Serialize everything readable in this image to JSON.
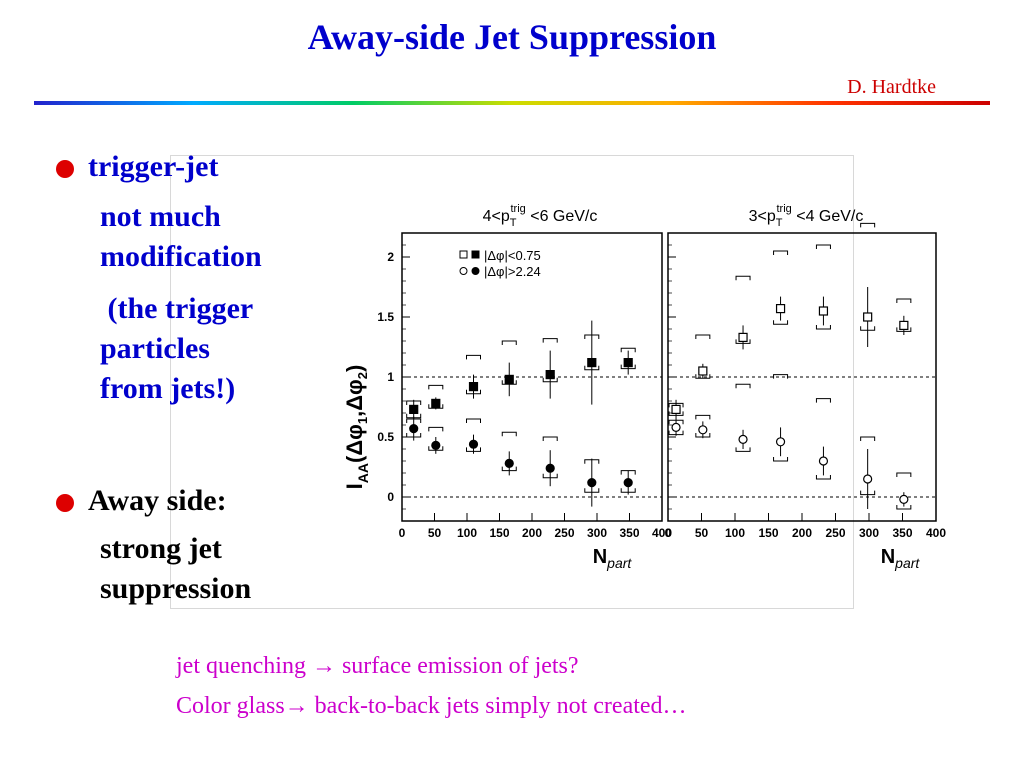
{
  "slide": {
    "title": "Away-side Jet Suppression",
    "author": "D. Hardtke",
    "bullet1": {
      "heading": "trigger-jet",
      "lines": [
        "not much",
        "modification",
        " (the trigger",
        "particles",
        "from jets!)"
      ]
    },
    "bullet2": {
      "heading": "Away side:",
      "lines": [
        "strong jet",
        "suppression"
      ]
    },
    "footer": [
      "jet quenching → surface emission of jets?",
      "Color glass→ back-to-back jets simply not created…"
    ]
  },
  "chart_data": {
    "type": "scatter",
    "ylabel": "I_AA(Δφ1,Δφ2)",
    "xlabel": "N_part",
    "ylim": [
      -0.2,
      2.2
    ],
    "xlim": [
      0,
      400
    ],
    "yticks": [
      "0",
      "0.5",
      "1",
      "1.5",
      "2"
    ],
    "xticks": [
      "0",
      "50",
      "100",
      "150",
      "200",
      "250",
      "300",
      "350",
      "400"
    ],
    "legend_position": "top-left",
    "legend": [
      "|Δφ|<0.75",
      "|Δφ|>2.24"
    ],
    "panels": [
      {
        "title": "4<p_T^trig <6 GeV/c",
        "title_main": "4<p",
        "title_sub": "T",
        "title_sup": "trig",
        "title_rest": " <6 GeV/c",
        "series": [
          {
            "name": "|Δφ|<0.75",
            "marker": "filled-square",
            "x": [
              18,
              52,
              110,
              165,
              228,
              292,
              348
            ],
            "y": [
              0.73,
              0.78,
              0.92,
              0.98,
              1.02,
              1.12,
              1.12
            ],
            "err": [
              0.08,
              0.05,
              0.1,
              0.14,
              0.2,
              0.35,
              0.1
            ],
            "sys_low": [
              0.66,
              0.74,
              0.86,
              0.94,
              0.96,
              1.06,
              1.07
            ],
            "sys_high": [
              0.8,
              0.93,
              1.18,
              1.3,
              1.32,
              1.35,
              1.24
            ]
          },
          {
            "name": "|Δφ|>2.24",
            "marker": "filled-circle",
            "x": [
              18,
              52,
              110,
              165,
              228,
              292,
              348
            ],
            "y": [
              0.57,
              0.43,
              0.44,
              0.28,
              0.24,
              0.12,
              0.12
            ],
            "err": [
              0.1,
              0.07,
              0.08,
              0.1,
              0.15,
              0.2,
              0.1
            ],
            "sys_low": [
              0.5,
              0.39,
              0.38,
              0.22,
              0.16,
              0.04,
              0.04
            ],
            "sys_high": [
              0.65,
              0.58,
              0.65,
              0.54,
              0.5,
              0.31,
              0.22
            ]
          }
        ]
      },
      {
        "title": "3<p_T^trig <4 GeV/c",
        "title_main": "3<p",
        "title_sub": "T",
        "title_sup": "trig",
        "title_rest": " <4 GeV/c",
        "series": [
          {
            "name": "|Δφ|<0.75",
            "marker": "open-square",
            "x": [
              12,
              52,
              112,
              168,
              232,
              298,
              352
            ],
            "y": [
              0.73,
              1.05,
              1.33,
              1.57,
              1.55,
              1.5,
              1.43
            ],
            "err": [
              0.08,
              0.06,
              0.1,
              0.1,
              0.12,
              0.25,
              0.08
            ],
            "sys_low": [
              0.68,
              0.99,
              1.28,
              1.44,
              1.4,
              1.39,
              1.38
            ],
            "sys_high": [
              0.78,
              1.35,
              1.84,
              2.05,
              2.1,
              2.28,
              1.65
            ]
          },
          {
            "name": "|Δφ|>2.24",
            "marker": "open-circle",
            "x": [
              12,
              52,
              112,
              168,
              232,
              298,
              352
            ],
            "y": [
              0.58,
              0.56,
              0.48,
              0.46,
              0.3,
              0.15,
              -0.02
            ],
            "err": [
              0.07,
              0.07,
              0.08,
              0.12,
              0.12,
              0.25,
              0.06
            ],
            "sys_low": [
              0.52,
              0.5,
              0.38,
              0.3,
              0.15,
              0.02,
              -0.1
            ],
            "sys_high": [
              0.64,
              0.68,
              0.94,
              1.02,
              0.82,
              0.5,
              0.2
            ]
          }
        ]
      }
    ],
    "reference_lines": [
      1,
      0
    ]
  }
}
